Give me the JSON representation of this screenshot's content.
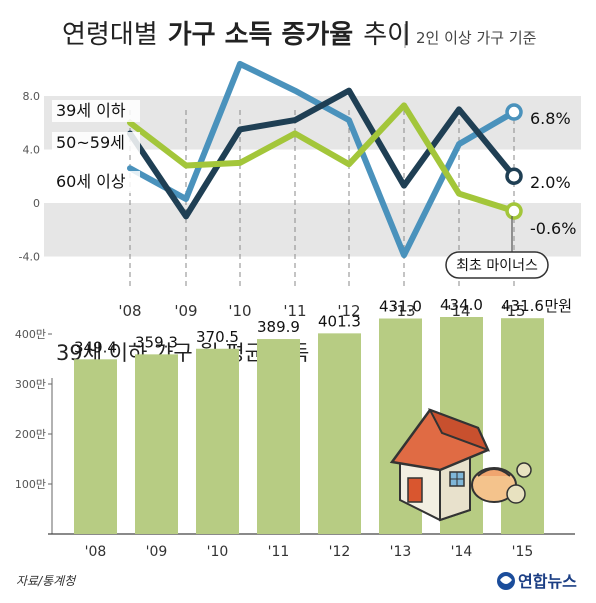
{
  "title": {
    "normal": "연령대별",
    "bold": "가구 소득 증가율",
    "tail": "추이",
    "note": "2인 이상 가구 기준"
  },
  "colors": {
    "band": "#e6e6e6",
    "under39": "#4a92bc",
    "age50s": "#1f3f54",
    "age60plus": "#a3c63a",
    "bar": "#b7cc83",
    "text": "#222222",
    "axis": "#666666"
  },
  "chart_data": [
    {
      "type": "line",
      "title": "",
      "x": [
        "'08",
        "'09",
        "'10",
        "'11",
        "'12",
        "'13",
        "'14",
        "'15"
      ],
      "yticks": [
        "8.0",
        "4.0",
        "0",
        "-4.0"
      ],
      "ylim": [
        -4,
        10.5
      ],
      "grid": false,
      "series": [
        {
          "name": "39세 이하",
          "values": [
            2.6,
            0.3,
            10.4,
            8.4,
            6.2,
            -3.9,
            4.4,
            6.8
          ],
          "end_label": "6.8%"
        },
        {
          "name": "50~59세",
          "values": [
            5.2,
            -1.0,
            5.5,
            6.2,
            8.4,
            1.3,
            7.0,
            2.0
          ],
          "end_label": "2.0%"
        },
        {
          "name": "60세 이상",
          "values": [
            6.0,
            2.8,
            3.0,
            5.2,
            2.9,
            7.3,
            0.7,
            -0.6
          ],
          "end_label": "-0.6%"
        }
      ],
      "annotation": "최초 마이너스"
    },
    {
      "type": "bar",
      "title": "39세 이하 가구 월 평균 소득",
      "categories": [
        "'08",
        "'09",
        "'10",
        "'11",
        "'12",
        "'13",
        "'14",
        "'15"
      ],
      "values": [
        349.4,
        359.3,
        370.5,
        389.9,
        401.3,
        431.0,
        434.0,
        431.6
      ],
      "value_labels": [
        "349.4",
        "359.3",
        "370.5",
        "389.9",
        "401.3",
        "431.0",
        "434.0",
        "431.6"
      ],
      "unit_suffix": "만원",
      "yticks": [
        "400만",
        "300만",
        "200만",
        "100만"
      ],
      "ylim": [
        0,
        420
      ]
    }
  ],
  "footer": {
    "source": "자료/통계청",
    "logo": "연합뉴스"
  }
}
